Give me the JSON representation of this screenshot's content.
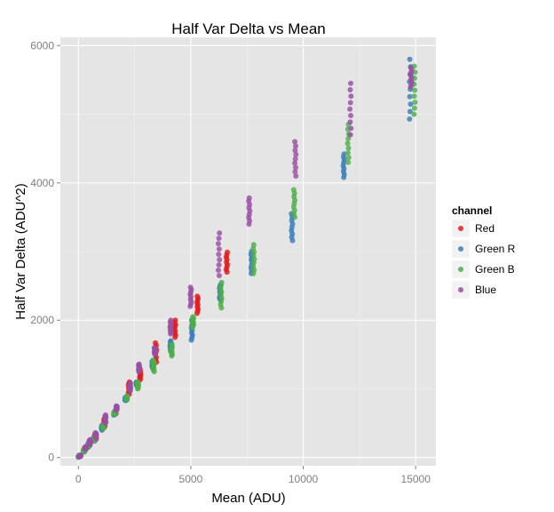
{
  "chart_data": {
    "type": "scatter",
    "title": "Half Var Delta vs Mean",
    "xlabel": "Mean (ADU)",
    "ylabel": "Half Var Delta (ADU^2)",
    "xlim": [
      -800,
      15900
    ],
    "ylim": [
      -120,
      6120
    ],
    "x_ticks": [
      0,
      5000,
      10000,
      15000
    ],
    "y_ticks": [
      0,
      2000,
      4000,
      6000
    ],
    "grid": true,
    "legend": {
      "title": "channel",
      "placement": "right"
    },
    "series": [
      {
        "name": "Red",
        "color": "#e41a1c",
        "clusters": [
          {
            "x": 80,
            "y_min": 15,
            "y_max": 30
          },
          {
            "x": 300,
            "y_min": 110,
            "y_max": 150
          },
          {
            "x": 500,
            "y_min": 170,
            "y_max": 240
          },
          {
            "x": 750,
            "y_min": 260,
            "y_max": 330
          },
          {
            "x": 1150,
            "y_min": 440,
            "y_max": 570
          },
          {
            "x": 1650,
            "y_min": 630,
            "y_max": 680
          },
          {
            "x": 2250,
            "y_min": 920,
            "y_max": 1100
          },
          {
            "x": 2750,
            "y_min": 1130,
            "y_max": 1280
          },
          {
            "x": 3450,
            "y_min": 1390,
            "y_max": 1670
          },
          {
            "x": 4300,
            "y_min": 1750,
            "y_max": 2000
          },
          {
            "x": 5300,
            "y_min": 2100,
            "y_max": 2350
          },
          {
            "x": 6600,
            "y_min": 2700,
            "y_max": 2990
          }
        ]
      },
      {
        "name": "Green R",
        "color": "#377eb8",
        "clusters": [
          {
            "x": 20,
            "y_min": 5,
            "y_max": 20
          },
          {
            "x": 250,
            "y_min": 80,
            "y_max": 120
          },
          {
            "x": 450,
            "y_min": 150,
            "y_max": 210
          },
          {
            "x": 700,
            "y_min": 240,
            "y_max": 290
          },
          {
            "x": 1050,
            "y_min": 400,
            "y_max": 470
          },
          {
            "x": 1600,
            "y_min": 620,
            "y_max": 660
          },
          {
            "x": 2100,
            "y_min": 830,
            "y_max": 880
          },
          {
            "x": 2600,
            "y_min": 1050,
            "y_max": 1100
          },
          {
            "x": 3300,
            "y_min": 1300,
            "y_max": 1400
          },
          {
            "x": 4100,
            "y_min": 1550,
            "y_max": 1700
          },
          {
            "x": 5050,
            "y_min": 1710,
            "y_max": 2000
          },
          {
            "x": 6300,
            "y_min": 2300,
            "y_max": 2520
          },
          {
            "x": 7700,
            "y_min": 2680,
            "y_max": 3000
          },
          {
            "x": 9500,
            "y_min": 3160,
            "y_max": 3550
          },
          {
            "x": 11800,
            "y_min": 4080,
            "y_max": 4420
          },
          {
            "x": 14750,
            "y_min": 4930,
            "y_max": 5800
          }
        ]
      },
      {
        "name": "Green B",
        "color": "#4daf4a",
        "clusters": [
          {
            "x": 40,
            "y_min": 10,
            "y_max": 25
          },
          {
            "x": 270,
            "y_min": 90,
            "y_max": 130
          },
          {
            "x": 470,
            "y_min": 160,
            "y_max": 220
          },
          {
            "x": 720,
            "y_min": 250,
            "y_max": 300
          },
          {
            "x": 1100,
            "y_min": 420,
            "y_max": 480
          },
          {
            "x": 1620,
            "y_min": 630,
            "y_max": 670
          },
          {
            "x": 2150,
            "y_min": 840,
            "y_max": 900
          },
          {
            "x": 2650,
            "y_min": 1000,
            "y_max": 1100
          },
          {
            "x": 3350,
            "y_min": 1250,
            "y_max": 1420
          },
          {
            "x": 4150,
            "y_min": 1480,
            "y_max": 1650
          },
          {
            "x": 5100,
            "y_min": 1900,
            "y_max": 2050
          },
          {
            "x": 6350,
            "y_min": 2180,
            "y_max": 2550
          },
          {
            "x": 7800,
            "y_min": 2680,
            "y_max": 3100
          },
          {
            "x": 9600,
            "y_min": 3500,
            "y_max": 3900
          },
          {
            "x": 12000,
            "y_min": 4300,
            "y_max": 4850
          },
          {
            "x": 14950,
            "y_min": 5000,
            "y_max": 5700
          }
        ]
      },
      {
        "name": "Blue",
        "color": "#984ea3",
        "clusters": [
          {
            "x": 60,
            "y_min": 15,
            "y_max": 35
          },
          {
            "x": 320,
            "y_min": 120,
            "y_max": 160
          },
          {
            "x": 520,
            "y_min": 190,
            "y_max": 260
          },
          {
            "x": 780,
            "y_min": 280,
            "y_max": 360
          },
          {
            "x": 1200,
            "y_min": 500,
            "y_max": 620
          },
          {
            "x": 1700,
            "y_min": 690,
            "y_max": 750
          },
          {
            "x": 2300,
            "y_min": 970,
            "y_max": 1080
          },
          {
            "x": 2700,
            "y_min": 1250,
            "y_max": 1360
          },
          {
            "x": 3400,
            "y_min": 1500,
            "y_max": 1600
          },
          {
            "x": 4100,
            "y_min": 1800,
            "y_max": 2000
          },
          {
            "x": 5000,
            "y_min": 2200,
            "y_max": 2480
          },
          {
            "x": 6250,
            "y_min": 2650,
            "y_max": 3270
          },
          {
            "x": 7600,
            "y_min": 3400,
            "y_max": 3780
          },
          {
            "x": 9650,
            "y_min": 4100,
            "y_max": 4600
          },
          {
            "x": 12100,
            "y_min": 4700,
            "y_max": 5450
          },
          {
            "x": 14800,
            "y_min": 5400,
            "y_max": 5680
          }
        ]
      }
    ]
  }
}
